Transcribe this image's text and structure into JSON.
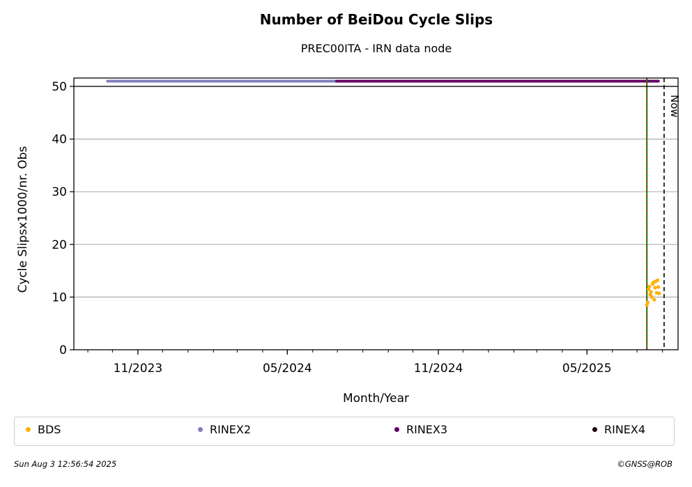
{
  "chart_data": {
    "type": "scatter",
    "title": "Number of BeiDou Cycle Slips",
    "subtitle": "PREC00ITA - IRN data node",
    "xlabel": "Month/Year",
    "ylabel": "Cycle Slipsx1000/nr. Obs",
    "ylim": [
      0,
      50
    ],
    "yticks": [
      0,
      10,
      20,
      30,
      40,
      50
    ],
    "x_range": [
      "2023-08-15",
      "2025-08-20"
    ],
    "xtick_labels": [
      {
        "date": "2023-11-01",
        "label": "11/2023"
      },
      {
        "date": "2024-05-01",
        "label": "05/2024"
      },
      {
        "date": "2024-11-01",
        "label": "11/2024"
      },
      {
        "date": "2025-05-01",
        "label": "05/2025"
      }
    ],
    "grid": "y",
    "now_label": "Now",
    "now_date": "2025-08-03",
    "vertical_line_date": "2025-07-13",
    "rinex_bars": [
      {
        "name": "RINEX2",
        "color": "#8080c0",
        "start": "2023-09-25",
        "end": "2024-06-30",
        "y": 51
      },
      {
        "name": "RINEX3",
        "color": "#660066",
        "start": "2024-06-30",
        "end": "2025-07-27",
        "y": 51
      }
    ],
    "series": [
      {
        "name": "BDS",
        "color": "#ffb000",
        "points": [
          [
            "2025-07-13",
            8.5
          ],
          [
            "2025-07-14",
            9.0
          ],
          [
            "2025-07-15",
            11.5
          ],
          [
            "2025-07-16",
            12.0
          ],
          [
            "2025-07-17",
            10.5
          ],
          [
            "2025-07-18",
            11.0
          ],
          [
            "2025-07-19",
            10.0
          ],
          [
            "2025-07-20",
            12.5
          ],
          [
            "2025-07-21",
            12.8
          ],
          [
            "2025-07-22",
            9.5
          ],
          [
            "2025-07-23",
            11.8
          ],
          [
            "2025-07-24",
            13.0
          ],
          [
            "2025-07-25",
            10.8
          ],
          [
            "2025-07-26",
            13.2
          ],
          [
            "2025-07-27",
            11.9
          ],
          [
            "2025-07-28",
            10.7
          ]
        ]
      }
    ],
    "legend": {
      "placement": "bottom",
      "items": [
        {
          "label": "BDS",
          "color": "#ffb000"
        },
        {
          "label": "RINEX2",
          "color": "#8080c0"
        },
        {
          "label": "RINEX3",
          "color": "#660066"
        },
        {
          "label": "RINEX4",
          "color": "#1a0010"
        }
      ]
    }
  },
  "footer": {
    "timestamp": "Sun Aug  3 12:56:54 2025",
    "copyright": "©GNSS@ROB"
  }
}
